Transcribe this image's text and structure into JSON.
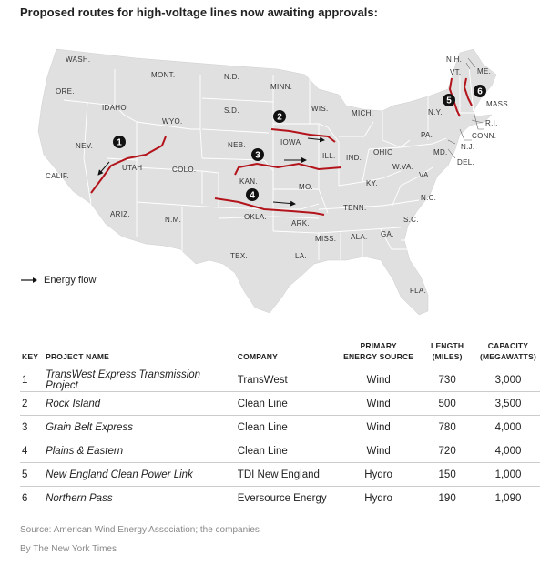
{
  "title": "Proposed routes for high-voltage lines now awaiting approvals:",
  "legend": {
    "label": "Energy flow",
    "icon": "arrow-right-icon"
  },
  "colors": {
    "land": "#e0e0e0",
    "border": "#ffffff",
    "route": "#b3131b",
    "marker": "#111111"
  },
  "map_labels": {
    "wash": "WASH.",
    "ore": "ORE.",
    "calif": "CALIF.",
    "idaho": "IDAHO",
    "nev": "NEV.",
    "mont": "MONT.",
    "wyo": "WYO.",
    "utah": "UTAH",
    "ariz": "ARIZ.",
    "colo": "COLO.",
    "nm": "N.M.",
    "nd": "N.D.",
    "sd": "S.D.",
    "neb": "NEB.",
    "kan": "KAN.",
    "okla": "OKLA.",
    "tex": "TEX.",
    "minn": "MINN.",
    "iowa": "IOWA",
    "mo": "MO.",
    "ark": "ARK.",
    "la": "LA.",
    "wis": "WIS.",
    "ill": "ILL.",
    "mich": "MICH.",
    "ind": "IND.",
    "ohio": "OHIO",
    "ky": "KY.",
    "tenn": "TENN.",
    "miss": "MISS.",
    "ala": "ALA.",
    "ga": "GA.",
    "fla": "FLA.",
    "sc": "S.C.",
    "nc": "N.C.",
    "va": "VA.",
    "wva": "W.VA.",
    "pa": "PA.",
    "ny": "N.Y.",
    "md": "MD.",
    "del": "DEL.",
    "nj": "N.J.",
    "conn": "CONN.",
    "ri": "R.I.",
    "mass": "MASS.",
    "vt": "VT.",
    "nh": "N.H.",
    "me": "ME."
  },
  "route_markers": [
    "1",
    "2",
    "3",
    "4",
    "5",
    "6"
  ],
  "table": {
    "headers": {
      "key": "KEY",
      "name": "PROJECT NAME",
      "company": "COMPANY",
      "source_line1": "PRIMARY",
      "source_line2": "ENERGY SOURCE",
      "length_line1": "LENGTH",
      "length_line2": "(MILES)",
      "capacity_line1": "CAPACITY",
      "capacity_line2": "(MEGAWATTS)"
    },
    "rows": [
      {
        "key": "1",
        "name": "TransWest Express Transmission Project",
        "company": "TransWest",
        "source": "Wind",
        "length": "730",
        "capacity": "3,000"
      },
      {
        "key": "2",
        "name": "Rock Island",
        "company": "Clean Line",
        "source": "Wind",
        "length": "500",
        "capacity": "3,500"
      },
      {
        "key": "3",
        "name": "Grain Belt Express",
        "company": "Clean Line",
        "source": "Wind",
        "length": "780",
        "capacity": "4,000"
      },
      {
        "key": "4",
        "name": "Plains & Eastern",
        "company": "Clean Line",
        "source": "Wind",
        "length": "720",
        "capacity": "4,000"
      },
      {
        "key": "5",
        "name": "New England Clean Power Link",
        "company": "TDI New England",
        "source": "Hydro",
        "length": "150",
        "capacity": "1,000"
      },
      {
        "key": "6",
        "name": "Northern Pass",
        "company": "Eversource Energy",
        "source": "Hydro",
        "length": "190",
        "capacity": "1,090"
      }
    ]
  },
  "source_note": "Source: American Wind Energy Association; the companies",
  "byline": "By The New York Times"
}
